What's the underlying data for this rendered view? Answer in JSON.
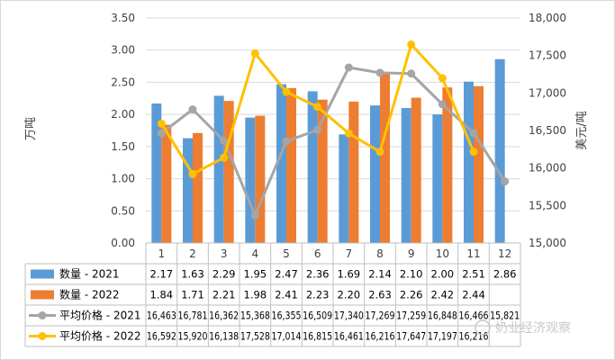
{
  "chart_data": {
    "type": "bar+line",
    "categories": [
      "1",
      "2",
      "3",
      "4",
      "5",
      "6",
      "7",
      "8",
      "9",
      "10",
      "11",
      "12"
    ],
    "series": [
      {
        "name": "数量 - 2021",
        "kind": "bar",
        "axis": "left",
        "color": "#5b9bd5",
        "values": [
          2.17,
          1.63,
          2.29,
          1.95,
          2.47,
          2.36,
          1.69,
          2.14,
          2.1,
          2.0,
          2.51,
          2.86
        ],
        "labels": [
          "2.17",
          "1.63",
          "2.29",
          "1.95",
          "2.47",
          "2.36",
          "1.69",
          "2.14",
          "2.10",
          "2.00",
          "2.51",
          "2.86"
        ]
      },
      {
        "name": "数量 - 2022",
        "kind": "bar",
        "axis": "left",
        "color": "#ed7d31",
        "values": [
          1.84,
          1.71,
          2.21,
          1.98,
          2.41,
          2.23,
          2.2,
          2.63,
          2.26,
          2.42,
          2.44,
          null
        ],
        "labels": [
          "1.84",
          "1.71",
          "2.21",
          "1.98",
          "2.41",
          "2.23",
          "2.20",
          "2.63",
          "2.26",
          "2.42",
          "2.44",
          ""
        ]
      },
      {
        "name": "平均价格 - 2021",
        "kind": "line",
        "axis": "right",
        "color": "#a5a5a5",
        "values": [
          16463,
          16781,
          16362,
          15368,
          16355,
          16509,
          17340,
          17269,
          17259,
          16848,
          16466,
          15821
        ],
        "labels": [
          "16,463",
          "16,781",
          "16,362",
          "15,368",
          "16,355",
          "16,509",
          "17,340",
          "17,269",
          "17,259",
          "16,848",
          "16,466",
          "15,821"
        ]
      },
      {
        "name": "平均价格 - 2022",
        "kind": "line",
        "axis": "right",
        "color": "#ffc000",
        "values": [
          16592,
          15920,
          16138,
          17528,
          17014,
          16815,
          16461,
          16216,
          17647,
          17197,
          16216,
          null
        ],
        "labels": [
          "16,592",
          "15,920",
          "16,138",
          "17,528",
          "17,014",
          "16,815",
          "16,461",
          "16,216",
          "17,647",
          "17,197",
          "16,216",
          ""
        ]
      }
    ],
    "y_left": {
      "label": "万吨",
      "min": 0,
      "max": 3.5,
      "ticks": [
        "0.00",
        "0.50",
        "1.00",
        "1.50",
        "2.00",
        "2.50",
        "3.00",
        "3.50"
      ]
    },
    "y_right": {
      "label": "美元/吨",
      "min": 15000,
      "max": 18000,
      "ticks": [
        "15,000",
        "15,500",
        "16,000",
        "16,500",
        "17,000",
        "17,500",
        "18,000"
      ]
    },
    "grid": true,
    "legend": "data-table-below"
  },
  "watermark": "奶业经济观察"
}
